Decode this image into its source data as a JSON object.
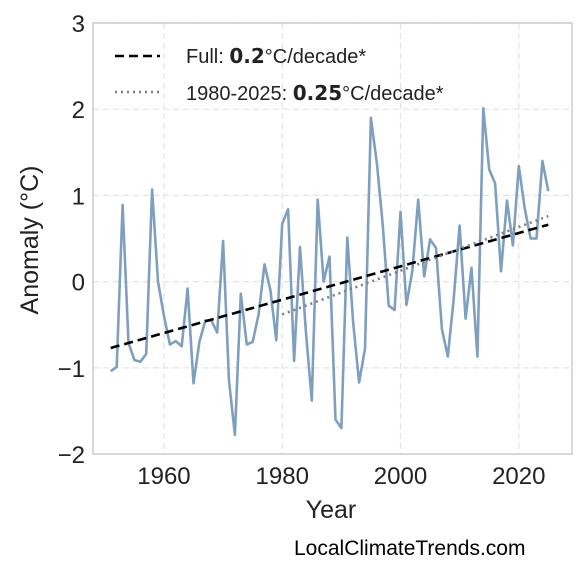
{
  "chart_data": {
    "type": "line",
    "xlabel": "Year",
    "ylabel": "Anomaly (°C)",
    "xlim": [
      1948,
      2029
    ],
    "ylim": [
      -2,
      3
    ],
    "x_ticks": [
      1960,
      1980,
      2000,
      2020
    ],
    "y_ticks": [
      -2,
      -1,
      0,
      1,
      2,
      3
    ],
    "y_tick_labels": [
      "−2",
      "−1",
      "0",
      "1",
      "2",
      "3"
    ],
    "grid": true,
    "legend_position": "top-left",
    "series": [
      {
        "kind": "observed",
        "color": "#7f9fbf",
        "x": [
          1951,
          1952,
          1953,
          1954,
          1955,
          1956,
          1957,
          1958,
          1959,
          1960,
          1961,
          1962,
          1963,
          1964,
          1965,
          1966,
          1967,
          1968,
          1969,
          1970,
          1971,
          1972,
          1973,
          1974,
          1975,
          1976,
          1977,
          1978,
          1979,
          1980,
          1981,
          1982,
          1983,
          1984,
          1985,
          1986,
          1987,
          1988,
          1989,
          1990,
          1991,
          1992,
          1993,
          1994,
          1995,
          1996,
          1997,
          1998,
          1999,
          2000,
          2001,
          2002,
          2003,
          2004,
          2005,
          2006,
          2007,
          2008,
          2009,
          2010,
          2011,
          2012,
          2013,
          2014,
          2015,
          2016,
          2017,
          2018,
          2019,
          2020,
          2021,
          2022,
          2023,
          2024,
          2025
        ],
        "y": [
          -1.04,
          -0.99,
          0.89,
          -0.71,
          -0.91,
          -0.93,
          -0.84,
          1.07,
          0.0,
          -0.4,
          -0.73,
          -0.69,
          -0.75,
          -0.08,
          -1.18,
          -0.7,
          -0.45,
          -0.45,
          -0.59,
          0.47,
          -1.15,
          -1.78,
          -0.14,
          -0.73,
          -0.7,
          -0.38,
          0.2,
          -0.1,
          -0.68,
          0.67,
          0.84,
          -0.92,
          0.4,
          -0.58,
          -1.38,
          0.95,
          0.0,
          0.29,
          -1.6,
          -1.7,
          0.51,
          -0.48,
          -1.17,
          -0.78,
          1.9,
          1.37,
          0.65,
          -0.28,
          -0.33,
          0.81,
          -0.27,
          0.12,
          0.95,
          0.06,
          0.49,
          0.39,
          -0.55,
          -0.87,
          -0.2,
          0.65,
          -0.43,
          0.16,
          -0.87,
          2.01,
          1.3,
          1.14,
          0.12,
          0.94,
          0.42,
          1.34,
          0.85,
          0.5,
          0.5,
          1.4,
          1.05
        ]
      },
      {
        "kind": "trend-full",
        "name": "Full: 0.2°C/decade*",
        "slope_per_decade": 0.2,
        "color": "#000000",
        "x": [
          1951,
          2025
        ],
        "y": [
          -0.77,
          0.66
        ]
      },
      {
        "kind": "trend-recent",
        "name": "1980-2025: 0.25°C/decade*",
        "slope_per_decade": 0.25,
        "color": "#808080",
        "x": [
          1980,
          2025
        ],
        "y": [
          -0.38,
          0.76
        ]
      }
    ]
  },
  "legend": {
    "full": {
      "prefix": "Full: ",
      "value": "0.2",
      "suffix": "°C/decade*"
    },
    "recent": {
      "prefix": "1980-2025: ",
      "value": "0.25",
      "suffix": "°C/decade*"
    }
  },
  "watermark": "LocalClimateTrends.com"
}
